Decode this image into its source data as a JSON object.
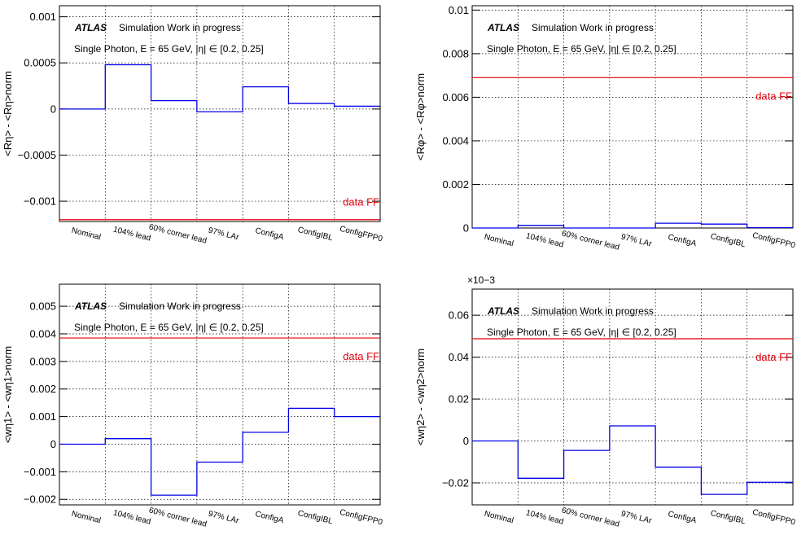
{
  "experiment": "ATLAS",
  "status": "Simulation Work in progress",
  "selection": "Single Photon, E = 65 GeV, |η| ∈ [0.2, 0.25]",
  "colors": {
    "series": "#0000e6",
    "reference": "#e8000b"
  },
  "chart_data": [
    {
      "type": "line",
      "ylabel": "<Rη> - <Rη>norm",
      "ylim": [
        -0.00122,
        0.00112
      ],
      "yticks": [
        -0.001,
        -0.0005,
        0,
        0.0005,
        0.001
      ],
      "ytick_labels": [
        "−0.001",
        "−0.0005",
        "0",
        "0.0005",
        "0.001"
      ],
      "multiplier": "",
      "categories": [
        "Nominal",
        "104% lead",
        "60% corner lead",
        "97% LAr",
        "ConfigA",
        "ConfigIBL",
        "ConfigFPP0"
      ],
      "values": [
        0,
        0.00048,
        9e-05,
        -3e-05,
        0.00024,
        6e-05,
        3e-05
      ],
      "reference": {
        "label": "data FF",
        "value": -0.0012
      },
      "grid": true
    },
    {
      "type": "line",
      "ylabel": "<Rφ> - <Rφ>norm",
      "ylim": [
        0,
        0.0102
      ],
      "yticks": [
        0,
        0.002,
        0.004,
        0.006,
        0.008,
        0.01
      ],
      "ytick_labels": [
        "0",
        "0.002",
        "0.004",
        "0.006",
        "0.008",
        "0.01"
      ],
      "multiplier": "",
      "categories": [
        "Nominal",
        "104% lead",
        "60% corner lead",
        "97% LAr",
        "ConfigA",
        "ConfigIBL",
        "ConfigFPP0"
      ],
      "values": [
        0,
        0.00012,
        0,
        0,
        0.00022,
        0.00018,
        2e-05
      ],
      "reference": {
        "label": "data FF",
        "value": 0.0069
      },
      "grid": true
    },
    {
      "type": "line",
      "ylabel": "<wη1> - <wη1>norm",
      "ylim": [
        -0.0022,
        0.0058
      ],
      "yticks": [
        -0.002,
        -0.001,
        0,
        0.001,
        0.002,
        0.003,
        0.004,
        0.005
      ],
      "ytick_labels": [
        "−0.002",
        "−0.001",
        "0",
        "0.001",
        "0.002",
        "0.003",
        "0.004",
        "0.005"
      ],
      "multiplier": "",
      "categories": [
        "Nominal",
        "104% lead",
        "60% corner lead",
        "97% LAr",
        "ConfigA",
        "ConfigIBL",
        "ConfigFPP0"
      ],
      "values": [
        0,
        0.0002,
        -0.00185,
        -0.00065,
        0.00043,
        0.0013,
        0.001
      ],
      "reference": {
        "label": "data FF",
        "value": 0.00385
      },
      "grid": true
    },
    {
      "type": "line",
      "ylabel": "<wη2> - <wη2>norm",
      "ylim": [
        -3.05e-05,
        7.25e-05
      ],
      "yticks": [
        -2e-05,
        0,
        2e-05,
        4e-05,
        6e-05
      ],
      "ytick_labels": [
        "−0.02",
        "0",
        "0.02",
        "0.04",
        "0.06"
      ],
      "multiplier": "×10−3",
      "categories": [
        "Nominal",
        "104% lead",
        "60% corner lead",
        "97% LAr",
        "ConfigA",
        "ConfigIBL",
        "ConfigFPP0"
      ],
      "values": [
        0,
        -1.78e-05,
        -4.5e-06,
        7.2e-06,
        -1.25e-05,
        -2.55e-05,
        -1.97e-05
      ],
      "reference": {
        "label": "data FF",
        "value": 4.88e-05
      },
      "grid": true
    }
  ]
}
